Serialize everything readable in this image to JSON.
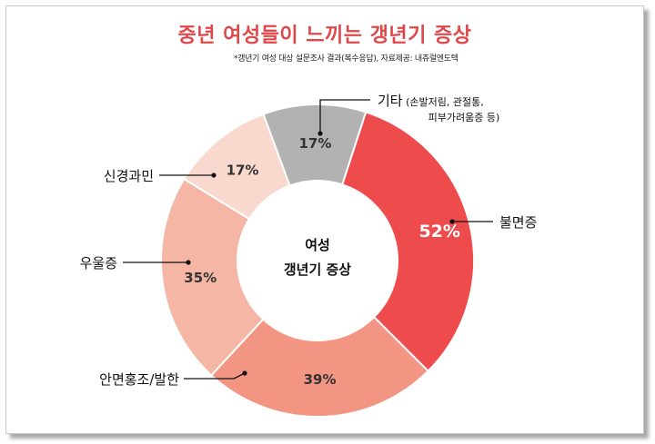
{
  "title": "중년 여성들이 느끼는 갱년기 증상",
  "note": "*갱년기 여성 대상 설문조사 결과(복수응답), 자료제공: 내츄럴엔도텍",
  "center_label": [
    "여성",
    "갱년기 증상"
  ],
  "chart_data": {
    "type": "pie",
    "unit": "%",
    "slices": [
      {
        "label": "불면증",
        "value": 52,
        "color": "#ee4b4d"
      },
      {
        "label": "안면홍조/발한",
        "value": 39,
        "color": "#f39583"
      },
      {
        "label": "우울증",
        "value": 35,
        "color": "#f6b6a5"
      },
      {
        "label": "신경과민",
        "value": 17,
        "color": "#f9d8cd"
      },
      {
        "label": "기타",
        "label_detail": [
          "(손발저림, 관절통,",
          "피부가려움증 등)"
        ],
        "value": 17,
        "color": "#b2b2b2"
      }
    ]
  }
}
